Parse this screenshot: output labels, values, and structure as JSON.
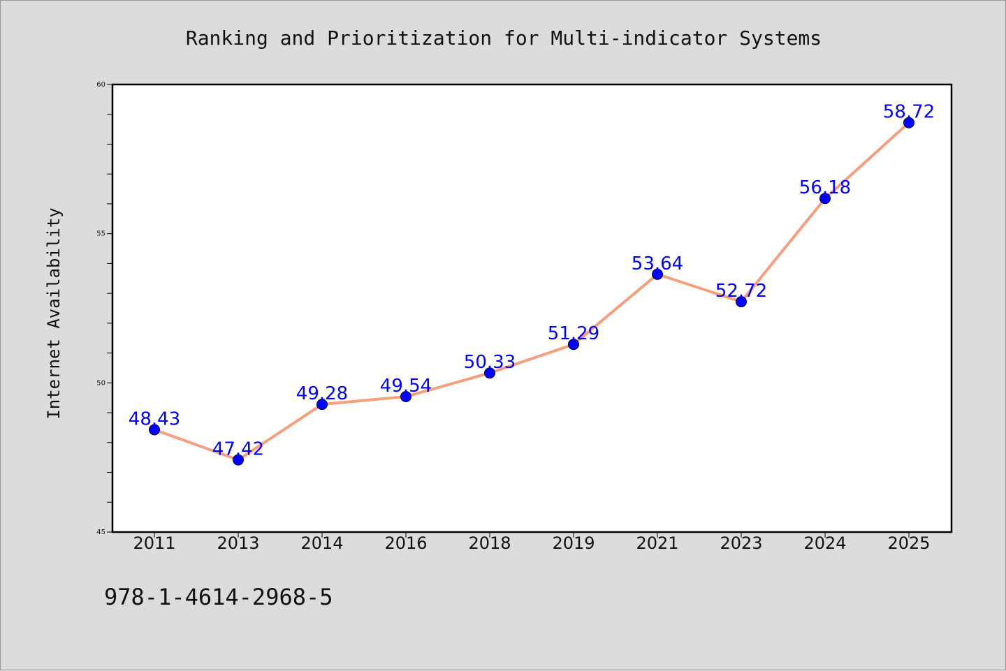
{
  "footer_text": "978-1-4614-2968-5",
  "chart_data": {
    "type": "line",
    "title": "Ranking and Prioritization for Multi-indicator Systems",
    "xlabel": "",
    "ylabel": "Internet Availability",
    "categories": [
      "2011",
      "2013",
      "2014",
      "2016",
      "2018",
      "2019",
      "2021",
      "2023",
      "2024",
      "2025"
    ],
    "series": [
      {
        "values": [
          48.43,
          47.42,
          49.28,
          49.54,
          50.33,
          51.29,
          53.64,
          52.72,
          56.18,
          58.72
        ],
        "labels": [
          "48.43",
          "47.42",
          "49.28",
          "49.54",
          "50.33",
          "51.29",
          "53.64",
          "52.72",
          "56.18",
          "58.72"
        ],
        "line_color": "#f4a07e",
        "marker_color": "#0000ff"
      }
    ],
    "ylim": [
      45,
      60
    ],
    "yticks": [
      "45",
      "50",
      "55",
      "60"
    ],
    "y_minor_step": 1,
    "grid": false,
    "legend": "none"
  }
}
